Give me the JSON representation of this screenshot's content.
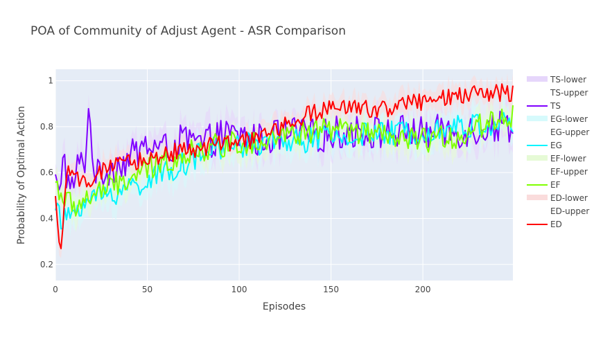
{
  "chart_data": {
    "type": "line",
    "title": "POA of Community of Adjust Agent - ASR Comparison",
    "xlabel": "Episodes",
    "ylabel": "Probability of Optimal Action",
    "xlim": [
      0,
      249
    ],
    "ylim": [
      0.13,
      1.05
    ],
    "xticks": [
      0,
      50,
      100,
      150,
      200
    ],
    "yticks": [
      0.2,
      0.4,
      0.6,
      0.8,
      1
    ],
    "xtick_labels": [
      "0",
      "50",
      "100",
      "150",
      "200"
    ],
    "ytick_labels": [
      "0.2",
      "0.4",
      "0.6",
      "0.8",
      "1"
    ],
    "grid": true,
    "legend_position": "right",
    "legend": [
      "TS-lower",
      "TS-upper",
      "TS",
      "EG-lower",
      "EG-upper",
      "EG",
      "EF-lower",
      "EF-upper",
      "EF",
      "ED-lower",
      "ED-upper",
      "ED"
    ],
    "series": [
      {
        "name": "TS",
        "color": "#7f00ff",
        "band_color": "#e6d6fb",
        "keypoints": [
          [
            0,
            0.56
          ],
          [
            2,
            0.48
          ],
          [
            4,
            0.7
          ],
          [
            8,
            0.5
          ],
          [
            12,
            0.62
          ],
          [
            16,
            0.66
          ],
          [
            18,
            0.86
          ],
          [
            22,
            0.58
          ],
          [
            30,
            0.62
          ],
          [
            40,
            0.66
          ],
          [
            50,
            0.72
          ],
          [
            60,
            0.7
          ],
          [
            70,
            0.74
          ],
          [
            80,
            0.72
          ],
          [
            90,
            0.76
          ],
          [
            100,
            0.76
          ],
          [
            110,
            0.74
          ],
          [
            120,
            0.76
          ],
          [
            130,
            0.77
          ],
          [
            140,
            0.76
          ],
          [
            150,
            0.77
          ],
          [
            160,
            0.78
          ],
          [
            170,
            0.78
          ],
          [
            180,
            0.77
          ],
          [
            190,
            0.78
          ],
          [
            200,
            0.77
          ],
          [
            210,
            0.78
          ],
          [
            220,
            0.78
          ],
          [
            230,
            0.79
          ],
          [
            240,
            0.8
          ],
          [
            249,
            0.81
          ]
        ],
        "noise": 0.075,
        "band_halfwidth": 0.06
      },
      {
        "name": "EG",
        "color": "#00f5ff",
        "band_color": "#d6fafc",
        "keypoints": [
          [
            0,
            0.48
          ],
          [
            3,
            0.37
          ],
          [
            8,
            0.42
          ],
          [
            15,
            0.47
          ],
          [
            25,
            0.5
          ],
          [
            35,
            0.52
          ],
          [
            45,
            0.55
          ],
          [
            55,
            0.58
          ],
          [
            65,
            0.62
          ],
          [
            75,
            0.66
          ],
          [
            85,
            0.7
          ],
          [
            95,
            0.72
          ],
          [
            105,
            0.72
          ],
          [
            115,
            0.73
          ],
          [
            125,
            0.74
          ],
          [
            135,
            0.74
          ],
          [
            145,
            0.75
          ],
          [
            155,
            0.75
          ],
          [
            165,
            0.76
          ],
          [
            175,
            0.77
          ],
          [
            185,
            0.77
          ],
          [
            195,
            0.78
          ],
          [
            205,
            0.79
          ],
          [
            215,
            0.8
          ],
          [
            225,
            0.8
          ],
          [
            235,
            0.81
          ],
          [
            249,
            0.82
          ]
        ],
        "noise": 0.055,
        "band_halfwidth": 0.06
      },
      {
        "name": "EF",
        "color": "#7fff00",
        "band_color": "#e6fad6",
        "keypoints": [
          [
            0,
            0.56
          ],
          [
            5,
            0.48
          ],
          [
            10,
            0.45
          ],
          [
            20,
            0.5
          ],
          [
            30,
            0.54
          ],
          [
            40,
            0.57
          ],
          [
            50,
            0.61
          ],
          [
            60,
            0.65
          ],
          [
            70,
            0.68
          ],
          [
            80,
            0.7
          ],
          [
            90,
            0.72
          ],
          [
            100,
            0.73
          ],
          [
            110,
            0.74
          ],
          [
            120,
            0.76
          ],
          [
            130,
            0.76
          ],
          [
            140,
            0.78
          ],
          [
            150,
            0.79
          ],
          [
            160,
            0.78
          ],
          [
            170,
            0.77
          ],
          [
            180,
            0.75
          ],
          [
            190,
            0.74
          ],
          [
            200,
            0.74
          ],
          [
            210,
            0.75
          ],
          [
            220,
            0.76
          ],
          [
            230,
            0.8
          ],
          [
            240,
            0.84
          ],
          [
            249,
            0.84
          ]
        ],
        "noise": 0.055,
        "band_halfwidth": 0.055
      },
      {
        "name": "ED",
        "color": "#ff0000",
        "band_color": "#fadcdc",
        "keypoints": [
          [
            0,
            0.47
          ],
          [
            1,
            0.38
          ],
          [
            3,
            0.26
          ],
          [
            6,
            0.6
          ],
          [
            10,
            0.56
          ],
          [
            20,
            0.58
          ],
          [
            30,
            0.62
          ],
          [
            40,
            0.64
          ],
          [
            50,
            0.66
          ],
          [
            60,
            0.68
          ],
          [
            70,
            0.7
          ],
          [
            80,
            0.71
          ],
          [
            90,
            0.72
          ],
          [
            100,
            0.73
          ],
          [
            110,
            0.75
          ],
          [
            120,
            0.79
          ],
          [
            130,
            0.82
          ],
          [
            140,
            0.86
          ],
          [
            150,
            0.88
          ],
          [
            160,
            0.88
          ],
          [
            170,
            0.88
          ],
          [
            180,
            0.88
          ],
          [
            190,
            0.9
          ],
          [
            200,
            0.91
          ],
          [
            210,
            0.92
          ],
          [
            220,
            0.93
          ],
          [
            230,
            0.94
          ],
          [
            240,
            0.95
          ],
          [
            249,
            0.95
          ]
        ],
        "noise": 0.04,
        "band_halfwidth": 0.045
      }
    ]
  }
}
